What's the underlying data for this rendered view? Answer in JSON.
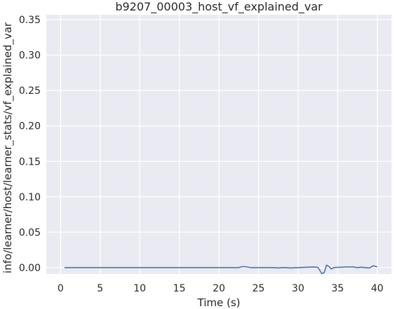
{
  "chart_data": {
    "type": "line",
    "title": "b9207_00003_host_vf_explained_var",
    "xlabel": "Time (s)",
    "ylabel": "info/learner/host/learner_stats/vf_explained_var",
    "xlim": [
      -1.8,
      41.8
    ],
    "ylim": [
      -0.009,
      0.357
    ],
    "xticks": [
      0,
      5,
      10,
      15,
      20,
      25,
      30,
      35,
      40
    ],
    "xtick_labels": [
      "0",
      "5",
      "10",
      "15",
      "20",
      "25",
      "30",
      "35",
      "40"
    ],
    "yticks": [
      0.0,
      0.05,
      0.1,
      0.15,
      0.2,
      0.25,
      0.3,
      0.35
    ],
    "ytick_labels": [
      "0.00",
      "0.05",
      "0.10",
      "0.15",
      "0.20",
      "0.25",
      "0.30",
      "0.35"
    ],
    "grid": true,
    "legend": false,
    "series": [
      {
        "color": "#4c72b0",
        "x": [
          0.5,
          1,
          2,
          3,
          4,
          5,
          6,
          7,
          8,
          9,
          10,
          11,
          12,
          13,
          14,
          15,
          16,
          17,
          18,
          19,
          20,
          21,
          22,
          22.5,
          23.0,
          23.5,
          24,
          25,
          26,
          27,
          27.5,
          28,
          28.5,
          29,
          29.5,
          30,
          31,
          32,
          32.5,
          33.0,
          33.3,
          33.6,
          33.9,
          34.2,
          34.5,
          35,
          35.5,
          36,
          37,
          37.5,
          38,
          38.5,
          39,
          39.5,
          40
        ],
        "y": [
          0.0,
          0.0,
          0.0,
          0.0,
          0.0,
          0.0,
          0.0,
          0.0,
          0.0,
          0.0,
          0.0,
          0.0,
          0.0,
          0.0,
          0.0,
          0.0,
          0.0,
          0.0,
          0.0,
          0.0,
          0.0,
          0.0,
          0.0,
          0.0,
          0.0015,
          0.001,
          0.0,
          0.0,
          0.0,
          0.0,
          -0.0005,
          0.0,
          0.0,
          -0.0005,
          -0.0003,
          0.0,
          0.0005,
          0.0008,
          0.0004,
          -0.0085,
          -0.007,
          0.0035,
          0.0015,
          -0.002,
          0.0,
          0.0005,
          0.0005,
          0.001,
          0.0008,
          0.0,
          0.0006,
          0.0,
          -0.0005,
          0.0025,
          0.001
        ]
      }
    ]
  }
}
